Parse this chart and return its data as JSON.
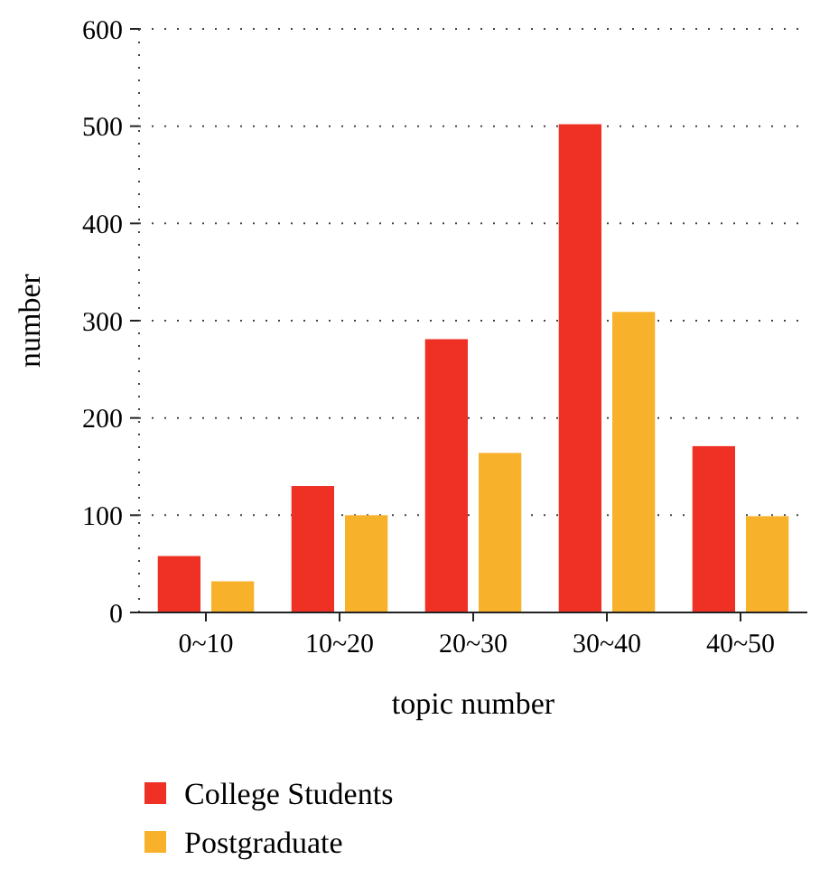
{
  "chart_data": {
    "type": "bar",
    "xlabel": "topic number",
    "ylabel": "number",
    "categories": [
      "0~10",
      "10~20",
      "20~30",
      "30~40",
      "40~50"
    ],
    "series": [
      {
        "name": "College Students",
        "color": "#ee3124",
        "values": [
          58,
          130,
          281,
          502,
          171
        ]
      },
      {
        "name": "Postgraduate",
        "color": "#f7b12a",
        "values": [
          32,
          100,
          164,
          309,
          99
        ]
      }
    ],
    "ylim": [
      0,
      600
    ],
    "yticks": [
      0,
      100,
      200,
      300,
      400,
      500,
      600
    ],
    "grid": "y",
    "legend": "bottom left"
  }
}
